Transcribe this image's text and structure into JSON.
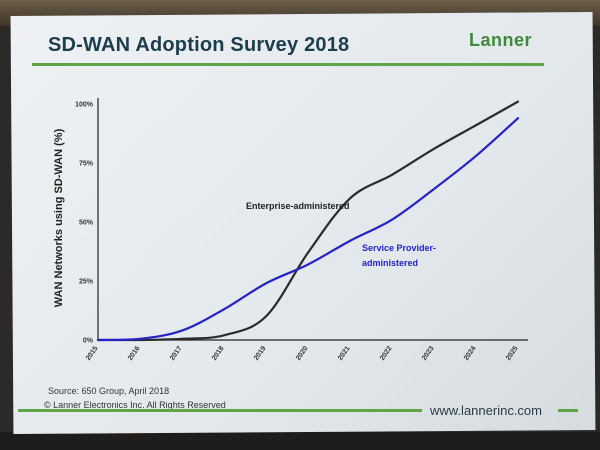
{
  "slide": {
    "title": "SD-WAN Adoption Survey 2018",
    "logo": "Lanner",
    "source": "Source: 650 Group, April 2018",
    "copyright": "© Lanner Electronics Inc. All Rights Reserved",
    "url": "www.lannerinc.com",
    "colors": {
      "accent_green": "#5fa545",
      "title": "#1c3d4c",
      "enterprise_line": "#2b2b2b",
      "provider_line": "#2323c8"
    }
  },
  "chart_data": {
    "type": "line",
    "title": "",
    "xlabel": "",
    "ylabel": "WAN Networks using SD-WAN (%)",
    "x": [
      2015,
      2016,
      2017,
      2018,
      2019,
      2020,
      2021,
      2022,
      2023,
      2024,
      2025
    ],
    "x_tick_labels": [
      "2015",
      "2016",
      "2017",
      "2018",
      "2019",
      "2020",
      "2021",
      "2022",
      "2023",
      "2024",
      "2025"
    ],
    "y_tick_labels": [
      "0%",
      "25%",
      "50%",
      "75%",
      "100%"
    ],
    "ylim": [
      0,
      100
    ],
    "grid": false,
    "series": [
      {
        "name": "Enterprise-administered",
        "color": "#2b2b2b",
        "values": [
          0,
          0,
          0.5,
          2,
          10,
          37,
          60,
          70,
          81,
          91,
          101
        ]
      },
      {
        "name": "Service Provider-administered",
        "color": "#2323c8",
        "values": [
          0,
          0.5,
          4,
          13,
          24,
          32,
          42,
          51,
          64,
          78,
          94
        ]
      }
    ],
    "annotations": [
      {
        "text": "Enterprise-administered",
        "series": 0
      },
      {
        "text": "Service Provider-",
        "series": 1
      },
      {
        "text": "administered",
        "series": 1
      }
    ]
  }
}
